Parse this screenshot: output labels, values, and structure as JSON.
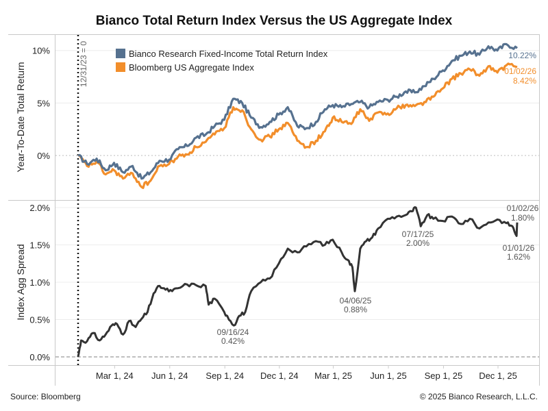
{
  "title": "Bianco Total Return Index Versus the US Aggregate Index",
  "footer": {
    "source": "Source: Bloomberg",
    "copyright": "© 2025 Bianco Research, L.L.C."
  },
  "colors": {
    "bianco": "#56718f",
    "aggregate": "#f28e2b",
    "spread": "#333333"
  },
  "chart_data": [
    {
      "type": "line",
      "panel": "top",
      "title": "Bianco Total Return Index Versus the US Aggregate Index",
      "ylabel": "Year-To-Date Total Return",
      "xlabel": "",
      "ylim": [
        -3.5,
        11
      ],
      "yticks": [
        0,
        5,
        10
      ],
      "ytick_labels": [
        "0%",
        "5%",
        "10%"
      ],
      "grid": true,
      "legend_position": "top-left",
      "reference_line": {
        "date": "2023-12-31",
        "label": "12/31/23 = 0"
      },
      "x": [
        "2023-12-31",
        "2024-01-15",
        "2024-01-31",
        "2024-02-15",
        "2024-02-29",
        "2024-03-15",
        "2024-03-31",
        "2024-04-15",
        "2024-04-30",
        "2024-05-15",
        "2024-05-31",
        "2024-06-15",
        "2024-06-30",
        "2024-07-15",
        "2024-07-31",
        "2024-08-15",
        "2024-08-31",
        "2024-09-15",
        "2024-09-30",
        "2024-10-15",
        "2024-10-31",
        "2024-11-15",
        "2024-11-30",
        "2024-12-15",
        "2024-12-31",
        "2025-01-15",
        "2025-01-31",
        "2025-02-15",
        "2025-02-28",
        "2025-03-15",
        "2025-03-31",
        "2025-04-15",
        "2025-04-30",
        "2025-05-15",
        "2025-05-31",
        "2025-06-15",
        "2025-06-30",
        "2025-07-15",
        "2025-07-31",
        "2025-08-15",
        "2025-08-31",
        "2025-09-15",
        "2025-09-30",
        "2025-10-15",
        "2025-10-31",
        "2025-11-15",
        "2025-11-30",
        "2025-12-15",
        "2026-01-02"
      ],
      "series": [
        {
          "name": "Bianco Research Fixed-Income Total Return Index",
          "color": "#56718f",
          "end_label": "10.22%",
          "values": [
            0.0,
            -0.8,
            -0.3,
            -1.4,
            -0.7,
            -1.6,
            -1.0,
            -2.2,
            -1.6,
            -0.5,
            -0.4,
            0.6,
            0.9,
            1.7,
            2.0,
            2.8,
            3.4,
            5.4,
            5.0,
            3.6,
            2.7,
            3.2,
            3.9,
            4.6,
            2.8,
            2.6,
            3.2,
            4.4,
            4.8,
            4.6,
            4.9,
            5.1,
            4.6,
            5.1,
            5.3,
            5.6,
            6.1,
            6.0,
            6.6,
            7.3,
            8.1,
            9.0,
            9.5,
            9.9,
            9.6,
            10.4,
            10.0,
            10.6,
            10.22
          ]
        },
        {
          "name": "Bloomberg US Aggregate Index",
          "color": "#f28e2b",
          "end_label_date": "01/02/26",
          "end_label": "8.42%",
          "values": [
            0.0,
            -1.0,
            -0.6,
            -1.8,
            -1.4,
            -2.2,
            -1.7,
            -3.0,
            -2.4,
            -1.0,
            -0.8,
            -0.1,
            0.1,
            0.8,
            1.3,
            2.0,
            2.6,
            4.6,
            4.3,
            2.5,
            1.5,
            1.8,
            2.5,
            3.1,
            1.4,
            0.8,
            1.4,
            2.3,
            3.6,
            3.2,
            3.0,
            4.4,
            3.3,
            4.1,
            4.0,
            4.5,
            4.8,
            4.7,
            5.1,
            5.6,
            6.4,
            7.3,
            7.8,
            8.2,
            7.6,
            8.5,
            7.9,
            8.6,
            8.42
          ]
        }
      ]
    },
    {
      "type": "line",
      "panel": "bottom",
      "ylabel": "Index Agg Spread",
      "xlabel": "",
      "ylim": [
        -0.05,
        2.15
      ],
      "yticks": [
        0.0,
        0.5,
        1.0,
        1.5,
        2.0
      ],
      "ytick_labels": [
        "0.0%",
        "0.5%",
        "1.0%",
        "1.5%",
        "2.0%"
      ],
      "xtick_labels": [
        "Mar 1, 24",
        "Jun 1, 24",
        "Sep 1, 24",
        "Dec 1, 24",
        "Mar 1, 25",
        "Jun 1, 25",
        "Sep 1, 25",
        "Dec 1, 25"
      ],
      "xticks": [
        "2024-03-01",
        "2024-06-01",
        "2024-09-01",
        "2024-12-01",
        "2025-03-01",
        "2025-06-01",
        "2025-09-01",
        "2025-12-01"
      ],
      "grid": true,
      "zero_line": "dashed",
      "x": [
        "2023-12-31",
        "2024-01-05",
        "2024-01-15",
        "2024-01-25",
        "2024-02-05",
        "2024-02-15",
        "2024-02-25",
        "2024-03-05",
        "2024-03-15",
        "2024-03-25",
        "2024-04-05",
        "2024-04-15",
        "2024-04-25",
        "2024-05-05",
        "2024-05-15",
        "2024-05-25",
        "2024-06-05",
        "2024-06-15",
        "2024-06-30",
        "2024-07-15",
        "2024-07-31",
        "2024-08-05",
        "2024-08-15",
        "2024-08-31",
        "2024-09-05",
        "2024-09-16",
        "2024-09-25",
        "2024-10-05",
        "2024-10-15",
        "2024-10-31",
        "2024-11-15",
        "2024-11-30",
        "2024-12-15",
        "2024-12-31",
        "2025-01-15",
        "2025-01-31",
        "2025-02-15",
        "2025-02-28",
        "2025-03-15",
        "2025-03-25",
        "2025-04-02",
        "2025-04-06",
        "2025-04-15",
        "2025-04-25",
        "2025-05-05",
        "2025-05-15",
        "2025-05-31",
        "2025-06-15",
        "2025-06-30",
        "2025-07-10",
        "2025-07-17",
        "2025-07-25",
        "2025-08-05",
        "2025-08-15",
        "2025-08-31",
        "2025-09-15",
        "2025-09-30",
        "2025-10-15",
        "2025-10-31",
        "2025-11-15",
        "2025-11-30",
        "2025-12-15",
        "2025-12-25",
        "2026-01-01",
        "2026-01-02"
      ],
      "series": [
        {
          "name": "Index Agg Spread",
          "color": "#333333",
          "values": [
            0.0,
            0.22,
            0.21,
            0.32,
            0.22,
            0.3,
            0.42,
            0.44,
            0.3,
            0.48,
            0.4,
            0.51,
            0.6,
            0.85,
            0.95,
            0.9,
            0.88,
            0.92,
            0.97,
            0.96,
            0.95,
            0.7,
            0.78,
            0.6,
            0.55,
            0.42,
            0.55,
            0.6,
            0.88,
            1.0,
            1.05,
            1.25,
            1.45,
            1.4,
            1.48,
            1.55,
            1.5,
            1.57,
            1.4,
            1.3,
            1.2,
            0.88,
            1.45,
            1.55,
            1.6,
            1.72,
            1.85,
            1.88,
            1.9,
            1.95,
            2.0,
            1.75,
            1.9,
            1.85,
            1.82,
            1.88,
            1.78,
            1.85,
            1.72,
            1.8,
            1.84,
            1.79,
            1.75,
            1.62,
            1.8
          ]
        }
      ],
      "annotations": [
        {
          "date": "09/16/24",
          "value": "0.42%"
        },
        {
          "date": "04/06/25",
          "value": "0.88%"
        },
        {
          "date": "07/17/25",
          "value": "2.00%"
        },
        {
          "date": "01/01/26",
          "value": "1.62%"
        },
        {
          "date": "01/02/26",
          "value": "1.80%"
        }
      ]
    }
  ]
}
